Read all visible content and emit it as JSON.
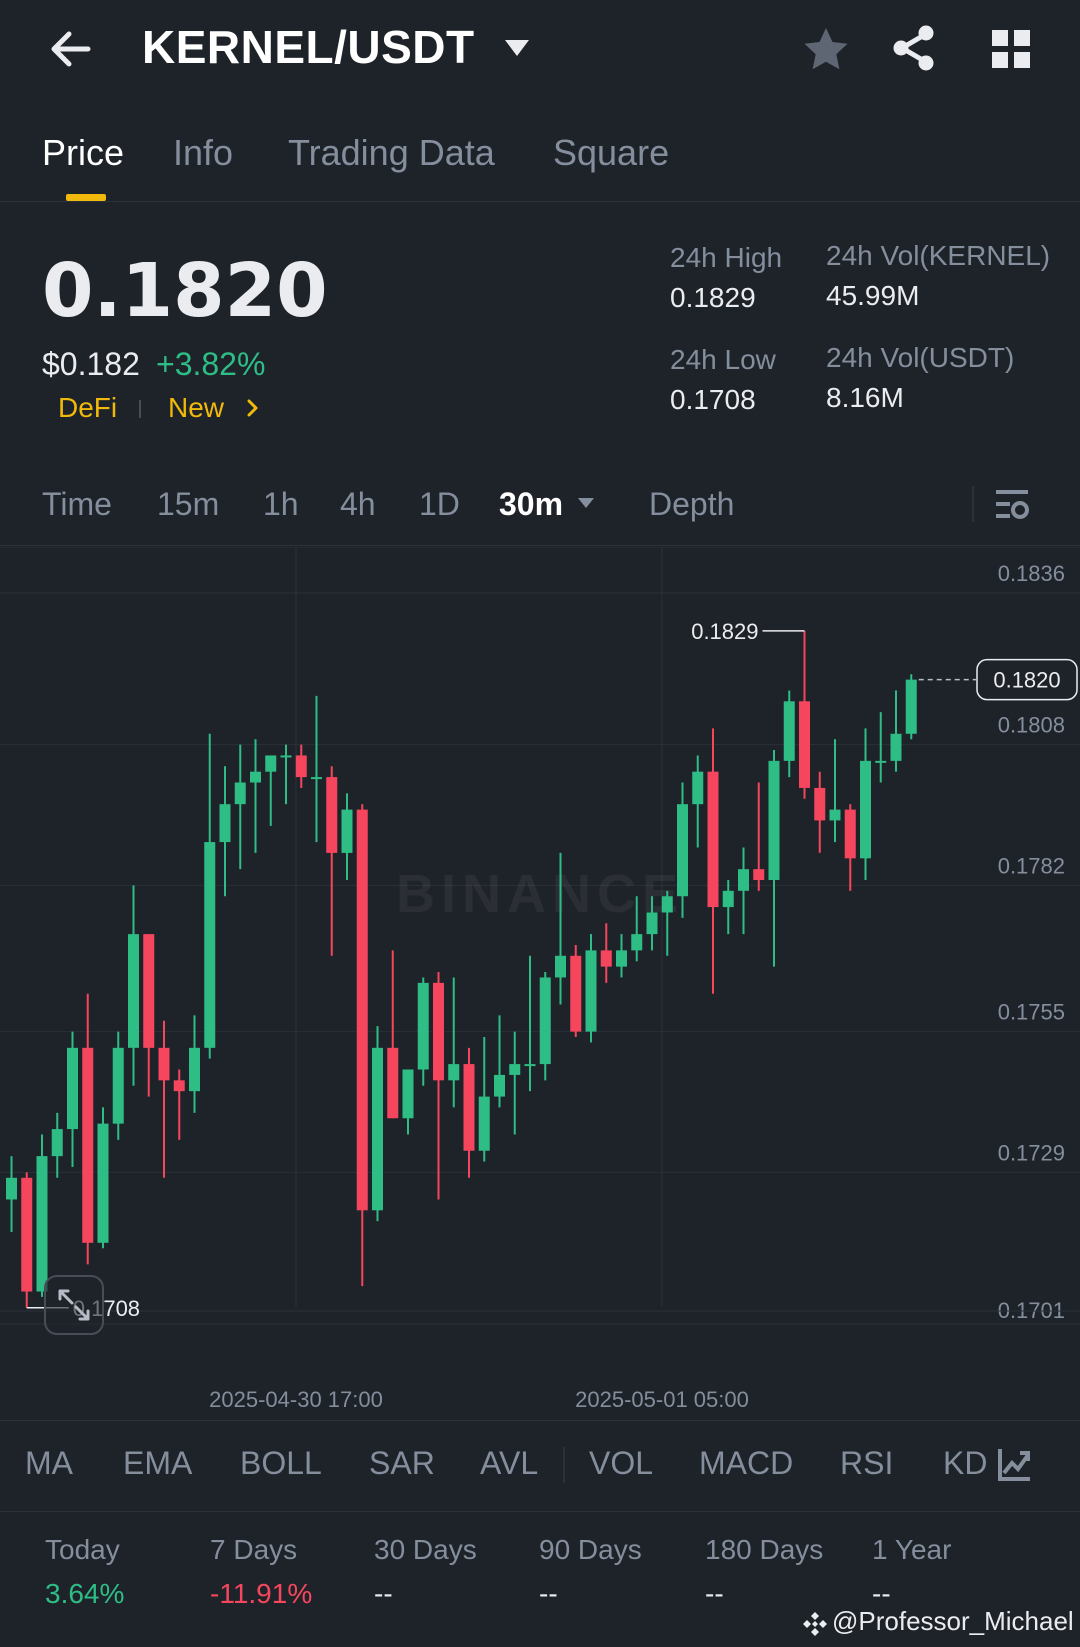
{
  "header": {
    "title": "KERNEL/USDT"
  },
  "tabs": [
    {
      "label": "Price",
      "active": true
    },
    {
      "label": "Info"
    },
    {
      "label": "Trading Data"
    },
    {
      "label": "Square"
    }
  ],
  "price": {
    "last": "0.1820",
    "usd": "$0.182",
    "change_pct": "+3.82%",
    "tags": [
      "DeFi",
      "New"
    ]
  },
  "stats": {
    "high_label": "24h High",
    "high": "0.1829",
    "low_label": "24h Low",
    "low": "0.1708",
    "vol_base_label": "24h Vol(KERNEL)",
    "vol_base": "45.99M",
    "vol_quote_label": "24h Vol(USDT)",
    "vol_quote": "8.16M"
  },
  "intervals": {
    "items": [
      "Time",
      "15m",
      "1h",
      "4h",
      "1D",
      "30m",
      "Depth"
    ],
    "active": "30m"
  },
  "chart_data": {
    "type": "candlestick",
    "watermark": "BINANCE",
    "price_axis": [
      "0.1836",
      "0.1808",
      "0.1782",
      "0.1755",
      "0.1729",
      "0.1701"
    ],
    "y_range": [
      0.1701,
      0.1836
    ],
    "time_axis": [
      "2025-04-30 17:00",
      "2025-05-01 05:00"
    ],
    "high_label": "0.1829",
    "low_label": "0.1708",
    "last_price_label": "0.1820",
    "colors": {
      "up": "#2ebd85",
      "down": "#f6465d"
    },
    "candles": [
      {
        "o": 0.1724,
        "h": 0.1732,
        "l": 0.1718,
        "c": 0.1728
      },
      {
        "o": 0.1728,
        "h": 0.1729,
        "l": 0.1704,
        "c": 0.1707
      },
      {
        "o": 0.1707,
        "h": 0.1736,
        "l": 0.1706,
        "c": 0.1732
      },
      {
        "o": 0.1732,
        "h": 0.174,
        "l": 0.1728,
        "c": 0.1737
      },
      {
        "o": 0.1737,
        "h": 0.1755,
        "l": 0.173,
        "c": 0.1752
      },
      {
        "o": 0.1752,
        "h": 0.1762,
        "l": 0.1712,
        "c": 0.1716
      },
      {
        "o": 0.1716,
        "h": 0.1741,
        "l": 0.1715,
        "c": 0.1738
      },
      {
        "o": 0.1738,
        "h": 0.1755,
        "l": 0.1735,
        "c": 0.1752
      },
      {
        "o": 0.1752,
        "h": 0.1782,
        "l": 0.1745,
        "c": 0.1773
      },
      {
        "o": 0.1773,
        "h": 0.1773,
        "l": 0.1743,
        "c": 0.1752
      },
      {
        "o": 0.1752,
        "h": 0.1757,
        "l": 0.1728,
        "c": 0.1746
      },
      {
        "o": 0.1746,
        "h": 0.1748,
        "l": 0.1735,
        "c": 0.1744
      },
      {
        "o": 0.1744,
        "h": 0.1758,
        "l": 0.174,
        "c": 0.1752
      },
      {
        "o": 0.1752,
        "h": 0.181,
        "l": 0.175,
        "c": 0.179
      },
      {
        "o": 0.179,
        "h": 0.1804,
        "l": 0.178,
        "c": 0.1797
      },
      {
        "o": 0.1797,
        "h": 0.1808,
        "l": 0.1785,
        "c": 0.1801
      },
      {
        "o": 0.1801,
        "h": 0.1809,
        "l": 0.1788,
        "c": 0.1803
      },
      {
        "o": 0.1803,
        "h": 0.1806,
        "l": 0.1793,
        "c": 0.1806
      },
      {
        "o": 0.1806,
        "h": 0.1808,
        "l": 0.1797,
        "c": 0.1806
      },
      {
        "o": 0.1806,
        "h": 0.1808,
        "l": 0.18,
        "c": 0.1802
      },
      {
        "o": 0.1802,
        "h": 0.1817,
        "l": 0.179,
        "c": 0.1802
      },
      {
        "o": 0.1802,
        "h": 0.1804,
        "l": 0.1769,
        "c": 0.1788
      },
      {
        "o": 0.1788,
        "h": 0.1799,
        "l": 0.1783,
        "c": 0.1796
      },
      {
        "o": 0.1796,
        "h": 0.1797,
        "l": 0.1708,
        "c": 0.1722
      },
      {
        "o": 0.1722,
        "h": 0.1756,
        "l": 0.172,
        "c": 0.1752
      },
      {
        "o": 0.1752,
        "h": 0.177,
        "l": 0.1739,
        "c": 0.1739
      },
      {
        "o": 0.1739,
        "h": 0.1748,
        "l": 0.1736,
        "c": 0.1748
      },
      {
        "o": 0.1748,
        "h": 0.1765,
        "l": 0.1745,
        "c": 0.1764
      },
      {
        "o": 0.1764,
        "h": 0.1766,
        "l": 0.1724,
        "c": 0.1746
      },
      {
        "o": 0.1746,
        "h": 0.1765,
        "l": 0.1741,
        "c": 0.1749
      },
      {
        "o": 0.1749,
        "h": 0.1752,
        "l": 0.1728,
        "c": 0.1733
      },
      {
        "o": 0.1733,
        "h": 0.1754,
        "l": 0.1731,
        "c": 0.1743
      },
      {
        "o": 0.1743,
        "h": 0.1758,
        "l": 0.1741,
        "c": 0.1747
      },
      {
        "o": 0.1747,
        "h": 0.1755,
        "l": 0.1736,
        "c": 0.1749
      },
      {
        "o": 0.1749,
        "h": 0.1769,
        "l": 0.1744,
        "c": 0.1749
      },
      {
        "o": 0.1749,
        "h": 0.1766,
        "l": 0.1746,
        "c": 0.1765
      },
      {
        "o": 0.1765,
        "h": 0.1788,
        "l": 0.176,
        "c": 0.1769
      },
      {
        "o": 0.1769,
        "h": 0.1771,
        "l": 0.1754,
        "c": 0.1755
      },
      {
        "o": 0.1755,
        "h": 0.1773,
        "l": 0.1753,
        "c": 0.177
      },
      {
        "o": 0.177,
        "h": 0.1775,
        "l": 0.1764,
        "c": 0.1767
      },
      {
        "o": 0.1767,
        "h": 0.1773,
        "l": 0.1765,
        "c": 0.177
      },
      {
        "o": 0.177,
        "h": 0.178,
        "l": 0.1768,
        "c": 0.1773
      },
      {
        "o": 0.1773,
        "h": 0.178,
        "l": 0.177,
        "c": 0.1777
      },
      {
        "o": 0.1777,
        "h": 0.1781,
        "l": 0.1769,
        "c": 0.178
      },
      {
        "o": 0.178,
        "h": 0.1801,
        "l": 0.1776,
        "c": 0.1797
      },
      {
        "o": 0.1797,
        "h": 0.1806,
        "l": 0.1789,
        "c": 0.1803
      },
      {
        "o": 0.1803,
        "h": 0.1811,
        "l": 0.1762,
        "c": 0.1778
      },
      {
        "o": 0.1778,
        "h": 0.1783,
        "l": 0.1773,
        "c": 0.1781
      },
      {
        "o": 0.1781,
        "h": 0.1789,
        "l": 0.1773,
        "c": 0.1785
      },
      {
        "o": 0.1785,
        "h": 0.1801,
        "l": 0.1781,
        "c": 0.1783
      },
      {
        "o": 0.1783,
        "h": 0.1807,
        "l": 0.1767,
        "c": 0.1805
      },
      {
        "o": 0.1805,
        "h": 0.1818,
        "l": 0.1802,
        "c": 0.1816
      },
      {
        "o": 0.1816,
        "h": 0.1829,
        "l": 0.1798,
        "c": 0.18
      },
      {
        "o": 0.18,
        "h": 0.1803,
        "l": 0.1788,
        "c": 0.1794
      },
      {
        "o": 0.1794,
        "h": 0.1809,
        "l": 0.179,
        "c": 0.1796
      },
      {
        "o": 0.1796,
        "h": 0.1797,
        "l": 0.1781,
        "c": 0.1787
      },
      {
        "o": 0.1787,
        "h": 0.1811,
        "l": 0.1783,
        "c": 0.1805
      },
      {
        "o": 0.1805,
        "h": 0.1814,
        "l": 0.1801,
        "c": 0.1805
      },
      {
        "o": 0.1805,
        "h": 0.1818,
        "l": 0.1803,
        "c": 0.181
      },
      {
        "o": 0.181,
        "h": 0.1821,
        "l": 0.1809,
        "c": 0.182
      }
    ]
  },
  "indicators": [
    "MA",
    "EMA",
    "BOLL",
    "SAR",
    "AVL",
    "VOL",
    "MACD",
    "RSI",
    "KD"
  ],
  "performance": [
    {
      "label": "Today",
      "value": "3.64%",
      "color": "#2ebd85"
    },
    {
      "label": "7 Days",
      "value": "-11.91%",
      "color": "#f6465d"
    },
    {
      "label": "30 Days",
      "value": "--",
      "color": "#eaecef"
    },
    {
      "label": "90 Days",
      "value": "--",
      "color": "#eaecef"
    },
    {
      "label": "180 Days",
      "value": "--",
      "color": "#eaecef"
    },
    {
      "label": "1 Year",
      "value": "--",
      "color": "#eaecef"
    }
  ],
  "footer": {
    "credit": "@Professor_Michael"
  }
}
